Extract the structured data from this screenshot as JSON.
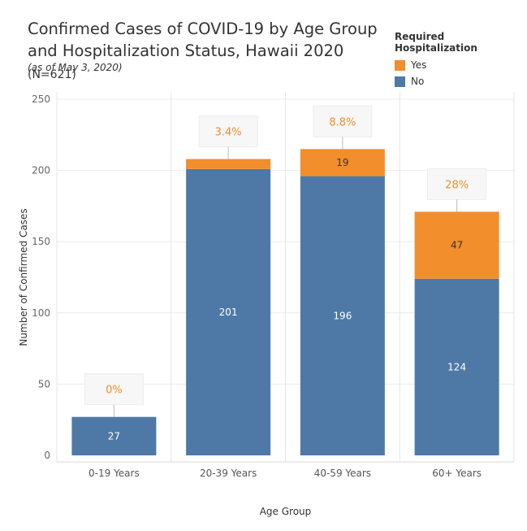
{
  "title_main": "Confirmed Cases of COVID-19 by Age Group and Hospitalization Status, Hawaii 2020",
  "title_n": "(N=621)",
  "subtitle": "(as of May 3, 2020)",
  "legend": {
    "title": "Required Hospitalization",
    "items": [
      {
        "label": "Yes",
        "color": "#f28e2b"
      },
      {
        "label": "No",
        "color": "#4e79a7"
      }
    ]
  },
  "chart_data": {
    "type": "bar",
    "stacked": true,
    "categories": [
      "0-19 Years",
      "20-39 Years",
      "40-59 Years",
      "60+ Years"
    ],
    "series": [
      {
        "name": "No",
        "color": "#4e79a7",
        "values": [
          27,
          201,
          196,
          124
        ],
        "labels": [
          "27",
          "201",
          "196",
          "124"
        ]
      },
      {
        "name": "Yes",
        "color": "#f28e2b",
        "values": [
          0,
          7,
          19,
          47
        ],
        "labels": [
          "",
          "",
          "19",
          "47"
        ]
      }
    ],
    "percent_labels": [
      "0%",
      "3.4%",
      "8.8%",
      "28%"
    ],
    "xlabel": "Age Group",
    "ylabel": "Number of Confirmed Cases",
    "ylim": [
      0,
      250
    ],
    "yticks": [
      0,
      50,
      100,
      150,
      200,
      250
    ],
    "grid": true
  }
}
